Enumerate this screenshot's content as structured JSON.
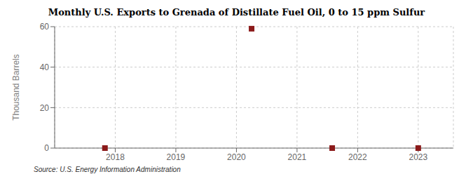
{
  "chart_data": {
    "type": "scatter",
    "title": "Monthly U.S. Exports to Grenada of Distillate Fuel Oil, 0 to 15 ppm Sulfur",
    "ylabel": "Thousand Barrels",
    "annotations": [
      "Source: U.S. Energy Information Administration"
    ],
    "x": [
      2017.83,
      2020.25,
      2021.58,
      2023.0
    ],
    "values": [
      0,
      59,
      0,
      0
    ],
    "color": "#8b1a1a",
    "marker": "square",
    "xlim": [
      2017.0,
      2023.58
    ],
    "ylim": [
      0,
      60
    ],
    "xticks": [
      2018,
      2019,
      2020,
      2021,
      2022,
      2023
    ],
    "yticks": [
      0,
      20,
      40,
      60
    ],
    "grid": true
  }
}
